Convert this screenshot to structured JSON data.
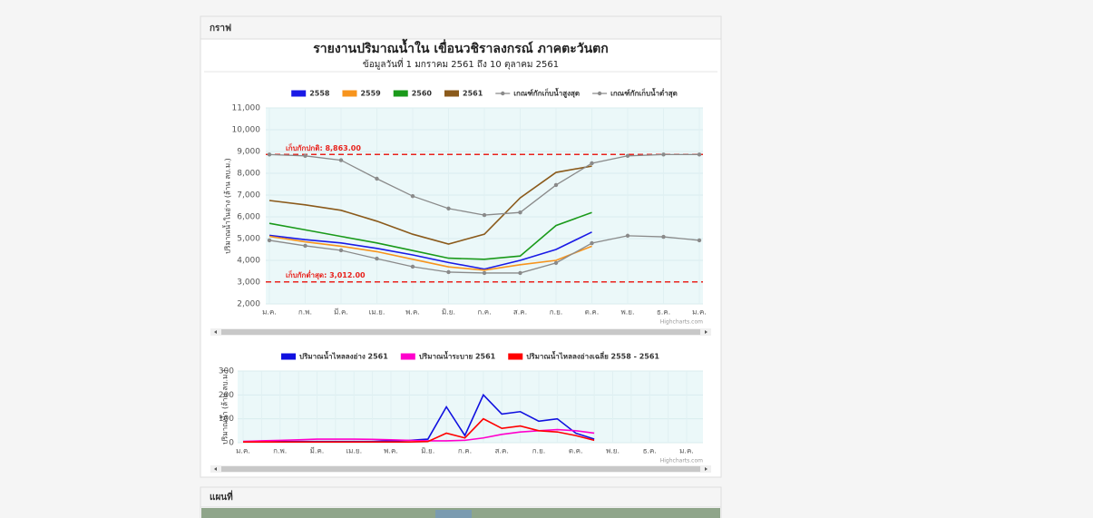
{
  "panels": [
    {
      "title": "กราฟ"
    },
    {
      "title": "แผนที่"
    }
  ],
  "report": {
    "title": "รายงานปริมาณน้ำใน เขื่อนวชิราลงกรณ์ ภาคตะวันตก",
    "subtitle": "ข้อมูลวันที่ 1 มกราคม 2561 ถึง 10 ตุลาคม 2561"
  },
  "chart_data": [
    {
      "type": "line",
      "y_label": "ปริมาณน้ำในอ่าง (ล้าน ลบ.ม.)",
      "credits": "Highcharts.com",
      "grid": true,
      "categories": [
        "ม.ค.",
        "ก.พ.",
        "มี.ค.",
        "เม.ย.",
        "พ.ค.",
        "มิ.ย.",
        "ก.ค.",
        "ส.ค.",
        "ก.ย.",
        "ต.ค.",
        "พ.ย.",
        "ธ.ค.",
        "ม.ค."
      ],
      "ylim": [
        2000,
        11000
      ],
      "yticks": [
        {
          "value": 2000,
          "label": "2,000"
        },
        {
          "value": 3000,
          "label": "3,000"
        },
        {
          "value": 4000,
          "label": "4,000"
        },
        {
          "value": 5000,
          "label": "5,000"
        },
        {
          "value": 6000,
          "label": "6,000"
        },
        {
          "value": 7000,
          "label": "7,000"
        },
        {
          "value": 8000,
          "label": "8,000"
        },
        {
          "value": 9000,
          "label": "9,000"
        },
        {
          "value": 10000,
          "label": "10,000"
        },
        {
          "value": 11000,
          "label": "11,000"
        }
      ],
      "plot_lines": [
        {
          "value": 8863,
          "label": "เก็บกักปกติ: 8,863.00",
          "color": "#e8221c"
        },
        {
          "value": 3012,
          "label": "เก็บกักต่ำสุด: 3,012.00",
          "color": "#e8221c"
        }
      ],
      "series": [
        {
          "name": "2558",
          "color": "#1a1ae6",
          "values": [
            5150,
            4950,
            4800,
            4550,
            4250,
            3900,
            3600,
            4000,
            4500,
            5300,
            null,
            null,
            null
          ]
        },
        {
          "name": "2559",
          "color": "#f7941d",
          "values": [
            5100,
            4850,
            4650,
            4400,
            4050,
            3700,
            3550,
            3800,
            4000,
            4650,
            null,
            null,
            null
          ]
        },
        {
          "name": "2560",
          "color": "#1a9a1a",
          "values": [
            5700,
            5400,
            5100,
            4800,
            4450,
            4100,
            4050,
            4200,
            5600,
            6200,
            null,
            null,
            null
          ]
        },
        {
          "name": "2561",
          "color": "#8b5a1b",
          "values": [
            6750,
            6550,
            6300,
            5800,
            5200,
            4750,
            5200,
            6870,
            8040,
            8330,
            null,
            null,
            null
          ]
        },
        {
          "name": "เกณฑ์กักเก็บน้ำสูงสุด",
          "color": "#8a8a8a",
          "marker": true,
          "values": [
            8860,
            8800,
            8600,
            7750,
            6950,
            6380,
            6080,
            6200,
            7460,
            8460,
            8800,
            8860,
            8860
          ]
        },
        {
          "name": "เกณฑ์กักเก็บน้ำต่ำสุด",
          "color": "#8a8a8a",
          "marker": true,
          "values": [
            4920,
            4670,
            4460,
            4080,
            3710,
            3460,
            3420,
            3420,
            3880,
            4790,
            5130,
            5080,
            4920
          ]
        }
      ]
    },
    {
      "type": "line",
      "y_label": "ปริมาณน้ำ (ล้าน ลบ.ม.)",
      "credits": "Highcharts.com",
      "grid": true,
      "categories": [
        "ม.ค.",
        null,
        "ก.พ.",
        null,
        "มี.ค.",
        null,
        "เม.ย.",
        null,
        "พ.ค.",
        null,
        "มิ.ย.",
        null,
        "ก.ค.",
        null,
        "ส.ค.",
        null,
        "ก.ย.",
        null,
        "ต.ค.",
        null,
        "พ.ย.",
        null,
        "ธ.ค.",
        null,
        "ม.ค."
      ],
      "ylim": [
        0,
        300
      ],
      "yticks": [
        0,
        100,
        200,
        300
      ],
      "series": [
        {
          "name": "ปริมาณน้ำไหลลงอ่าง 2561",
          "color": "#1010e0",
          "values": [
            5,
            5,
            5,
            5,
            5,
            5,
            5,
            5,
            8,
            10,
            15,
            150,
            30,
            200,
            120,
            130,
            90,
            100,
            40,
            15,
            null,
            null,
            null,
            null,
            null
          ]
        },
        {
          "name": "ปริมาณน้ำระบาย 2561",
          "color": "#ff00cc",
          "values": [
            5,
            8,
            10,
            12,
            15,
            15,
            15,
            14,
            12,
            10,
            8,
            8,
            10,
            20,
            35,
            45,
            50,
            55,
            50,
            40,
            null,
            null,
            null,
            null,
            null
          ]
        },
        {
          "name": "ปริมาณน้ำไหลลงอ่างเฉลี่ย 2558 - 2561",
          "color": "#ff0000",
          "values": [
            3,
            3,
            3,
            3,
            3,
            3,
            3,
            3,
            3,
            3,
            5,
            40,
            20,
            100,
            60,
            70,
            50,
            45,
            30,
            10,
            null,
            null,
            null,
            null,
            null
          ]
        }
      ]
    }
  ]
}
